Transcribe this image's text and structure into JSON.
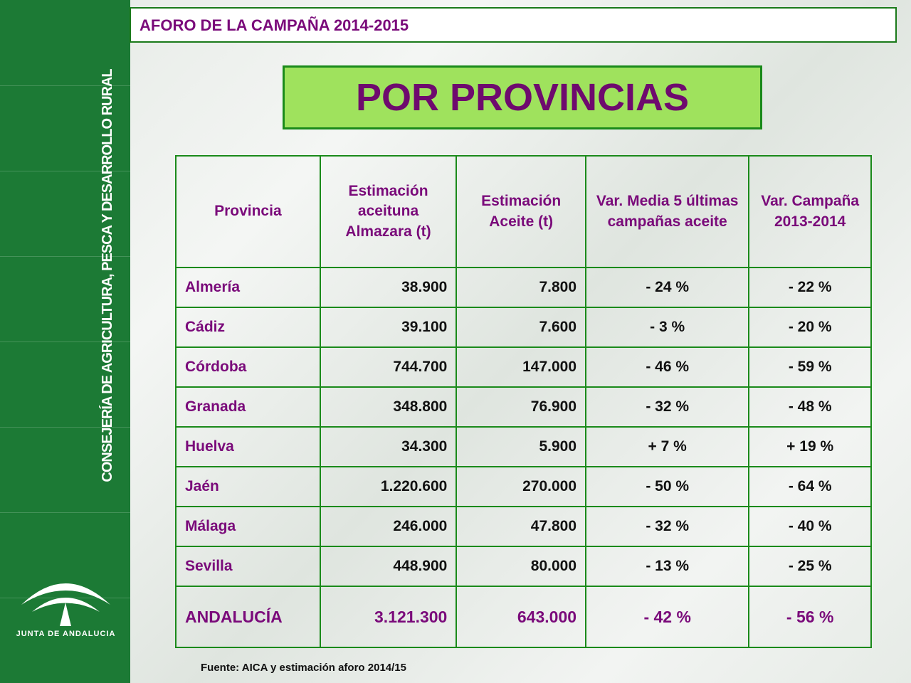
{
  "sidebar": {
    "vertical_text": "CONSEJERÍA DE AGRICULTURA, PESCA Y DESARROLLO RURAL",
    "logo_text": "JUNTA DE ANDALUCIA"
  },
  "header": {
    "title": "AFORO DE LA CAMPAÑA 2014-2015"
  },
  "banner": {
    "title": "POR PROVINCIAS"
  },
  "table": {
    "headers": [
      "Provincia",
      "Estimación aceituna Almazara (t)",
      "Estimación Aceite (t)",
      "Var. Media 5 últimas campañas aceite",
      "Var. Campaña 2013-2014"
    ],
    "rows": [
      [
        "Almería",
        "38.900",
        "7.800",
        "- 24 %",
        "- 22 %"
      ],
      [
        "Cádiz",
        "39.100",
        "7.600",
        "- 3 %",
        "- 20 %"
      ],
      [
        "Córdoba",
        "744.700",
        "147.000",
        "- 46 %",
        "- 59 %"
      ],
      [
        "Granada",
        "348.800",
        "76.900",
        "- 32 %",
        "- 48 %"
      ],
      [
        "Huelva",
        "34.300",
        "5.900",
        "+ 7 %",
        "+ 19 %"
      ],
      [
        "Jaén",
        "1.220.600",
        "270.000",
        "- 50 %",
        "- 64 %"
      ],
      [
        "Málaga",
        "246.000",
        "47.800",
        "- 32 %",
        "- 40 %"
      ],
      [
        "Sevilla",
        "448.900",
        "80.000",
        "- 13 %",
        "- 25 %"
      ]
    ],
    "total": [
      "ANDALUCÍA",
      "3.121.300",
      "643.000",
      "- 42 %",
      "- 56 %"
    ]
  },
  "footer": {
    "source": "Fuente: AICA y estimación aforo 2014/15"
  }
}
